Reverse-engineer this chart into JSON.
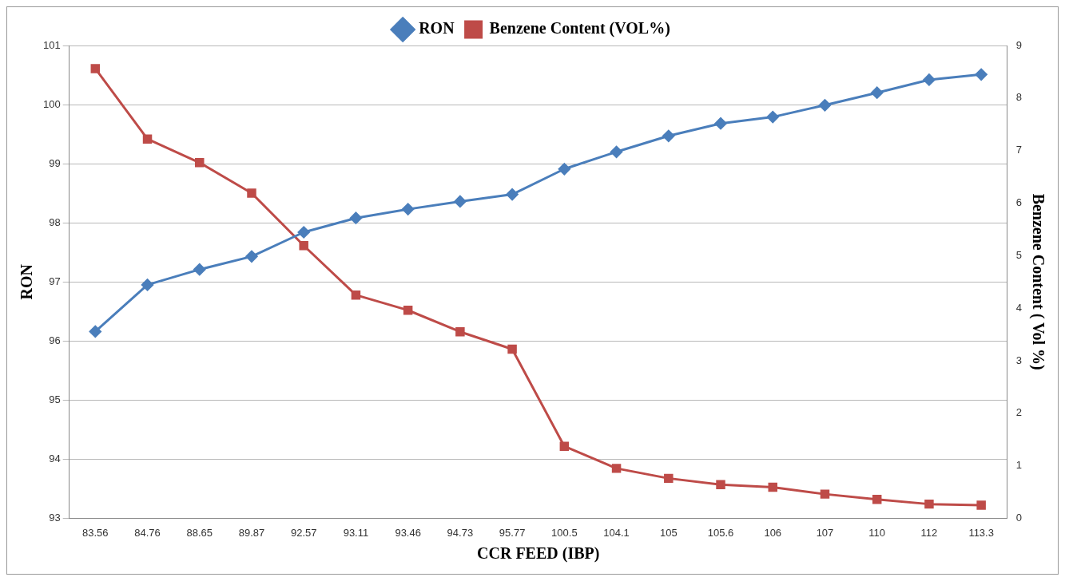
{
  "chart_data": {
    "type": "line",
    "xlabel": "CCR FEED (IBP)",
    "ylabel": "RON",
    "y2label": "Benzene Content ( Vol %)",
    "categories": [
      "83.56",
      "84.76",
      "88.65",
      "89.87",
      "92.57",
      "93.11",
      "93.46",
      "94.73",
      "95.77",
      "100.5",
      "104.1",
      "105",
      "105.6",
      "106",
      "107",
      "110",
      "112",
      "113.3"
    ],
    "series": [
      {
        "name": "RON",
        "color": "#4a7ebb",
        "marker": "diamond",
        "values": [
          96.16,
          96.95,
          97.21,
          97.43,
          97.84,
          98.08,
          98.23,
          98.36,
          98.48,
          98.91,
          99.2,
          99.47,
          99.68,
          99.79,
          99.99,
          100.2,
          100.42,
          100.51
        ]
      },
      {
        "name": "Benzene Content (VOL%)",
        "color": "#be4b48",
        "marker": "square",
        "axis": "y2",
        "values": [
          8.56,
          7.22,
          6.77,
          6.19,
          5.19,
          4.25,
          3.96,
          3.55,
          3.22,
          1.37,
          0.95,
          0.76,
          0.64,
          0.59,
          0.46,
          0.36,
          0.27,
          0.25
        ]
      }
    ],
    "ylim": [
      93,
      101
    ],
    "yticks": [
      93,
      94,
      95,
      96,
      97,
      98,
      99,
      100,
      101
    ],
    "y2lim": [
      0,
      9
    ],
    "y2ticks": [
      0,
      1,
      2,
      3,
      4,
      5,
      6,
      7,
      8,
      9
    ],
    "grid": "y",
    "legend": "top",
    "line_style": "solid"
  }
}
